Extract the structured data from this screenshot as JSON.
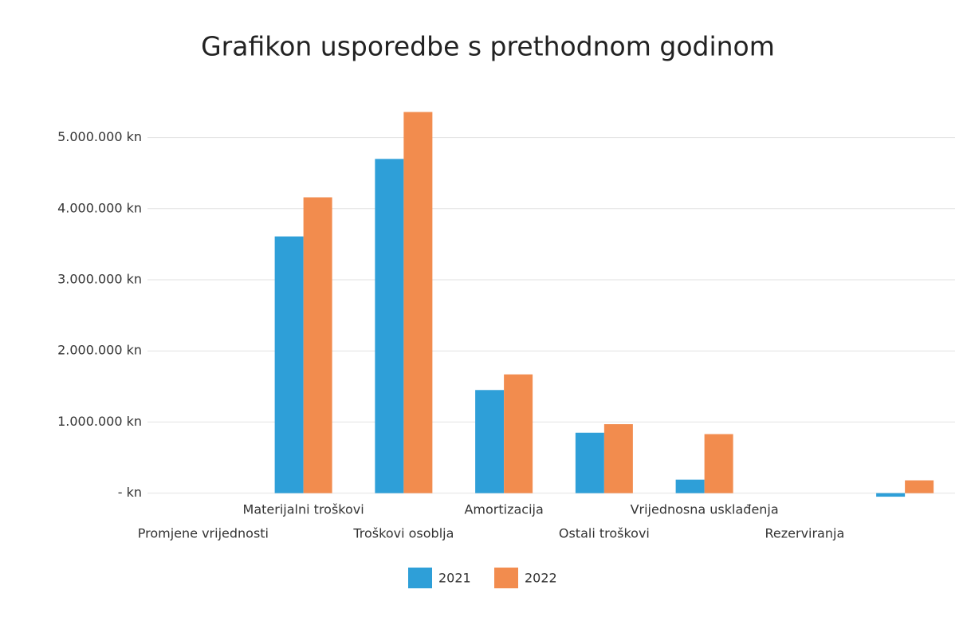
{
  "chart_data": {
    "type": "bar",
    "title": "Grafikon usporedbe s prethodnom godinom",
    "categories": [
      "Promjene vrijednosti",
      "Materijalni troškovi",
      "Troškovi osoblja",
      "Amortizacija",
      "Ostali troškovi",
      "Vrijednosna usklađenja",
      "Rezerviranja",
      null
    ],
    "series": [
      {
        "name": "2021",
        "color": "#2e9fd8",
        "values": [
          0,
          3610000,
          4700000,
          1450000,
          850000,
          190000,
          0,
          -50000
        ]
      },
      {
        "name": "2022",
        "color": "#f28c4e",
        "values": [
          0,
          4160000,
          5360000,
          1670000,
          970000,
          830000,
          0,
          180000
        ]
      }
    ],
    "ylim": [
      -150000,
      5500000
    ],
    "yticks": [
      {
        "value": 0,
        "label": "- kn"
      },
      {
        "value": 1000000,
        "label": "1.000.000 kn"
      },
      {
        "value": 2000000,
        "label": "2.000.000 kn"
      },
      {
        "value": 3000000,
        "label": "3.000.000 kn"
      },
      {
        "value": 4000000,
        "label": "4.000.000 kn"
      },
      {
        "value": 5000000,
        "label": "5.000.000 kn"
      }
    ],
    "grid": true,
    "legend": "bottom"
  }
}
